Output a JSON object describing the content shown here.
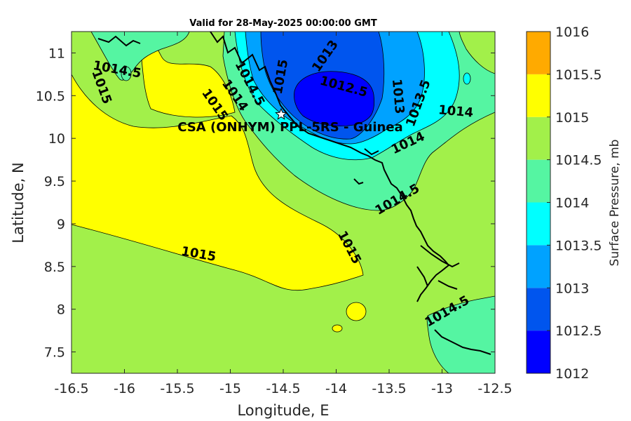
{
  "chart_data": {
    "type": "heatmap",
    "title": "Valid for 28-May-2025 00:00:00 GMT",
    "xlabel": "Longitude, E",
    "ylabel": "Latitude, N",
    "xlim": [
      -16.5,
      -12.5
    ],
    "ylim": [
      7.25,
      11.25
    ],
    "x_ticks": [
      -16.5,
      -16,
      -15.5,
      -15,
      -14.5,
      -14,
      -13.5,
      -13,
      -12.5
    ],
    "x_tick_labels": [
      "-16.5",
      "-16",
      "-15.5",
      "-15",
      "-14.5",
      "-14",
      "-13.5",
      "-13",
      "-12.5"
    ],
    "y_ticks": [
      7.5,
      8,
      8.5,
      9,
      9.5,
      10,
      10.5,
      11
    ],
    "y_tick_labels": [
      "7.5",
      "8",
      "8.5",
      "9",
      "9.5",
      "10",
      "10.5",
      "11"
    ],
    "colorbar": {
      "label": "Surface Pressure, mb",
      "levels": [
        1012,
        1012.5,
        1013,
        1013.5,
        1014,
        1014.5,
        1015,
        1015.5,
        1016
      ],
      "tick_labels": [
        "1012",
        "1012.5",
        "1013",
        "1013.5",
        "1014",
        "1014.5",
        "1015",
        "1015.5",
        "1016"
      ],
      "colors": [
        "#0000ff",
        "#0055ee",
        "#00a2ff",
        "#00ffff",
        "#55f5a2",
        "#a2f04a",
        "#ffff00",
        "#ffaa00",
        "#ff5500"
      ]
    },
    "contour_labels": [
      {
        "text": "1014.5",
        "lon": -16.07,
        "lat": 10.8,
        "angle": 10
      },
      {
        "text": "1015",
        "lon": -16.22,
        "lat": 10.6,
        "angle": 70
      },
      {
        "text": "1015",
        "lon": -15.15,
        "lat": 10.39,
        "angle": 55
      },
      {
        "text": "1014",
        "lon": -14.96,
        "lat": 10.5,
        "angle": 55
      },
      {
        "text": "1014.5",
        "lon": -14.82,
        "lat": 10.64,
        "angle": 62
      },
      {
        "text": "1015",
        "lon": -14.52,
        "lat": 10.72,
        "angle": -80
      },
      {
        "text": "1013",
        "lon": -14.1,
        "lat": 10.96,
        "angle": -55
      },
      {
        "text": "1012.5",
        "lon": -13.93,
        "lat": 10.6,
        "angle": 15
      },
      {
        "text": "1013",
        "lon": -13.42,
        "lat": 10.49,
        "angle": 85
      },
      {
        "text": "1013.5",
        "lon": -13.22,
        "lat": 10.41,
        "angle": -70
      },
      {
        "text": "1014",
        "lon": -12.87,
        "lat": 10.31,
        "angle": 5
      },
      {
        "text": "1014",
        "lon": -13.32,
        "lat": 9.94,
        "angle": -25
      },
      {
        "text": "1014.5",
        "lon": -13.42,
        "lat": 9.28,
        "angle": -30
      },
      {
        "text": "1015",
        "lon": -15.3,
        "lat": 8.64,
        "angle": 10
      },
      {
        "text": "1015",
        "lon": -13.88,
        "lat": 8.72,
        "angle": 62
      },
      {
        "text": "1014.5",
        "lon": -12.95,
        "lat": 7.97,
        "angle": -30
      }
    ],
    "station": {
      "label": "CSA (ONHYM) PPL-5RS - Guinea",
      "lon": -14.52,
      "lat": 10.28
    }
  }
}
